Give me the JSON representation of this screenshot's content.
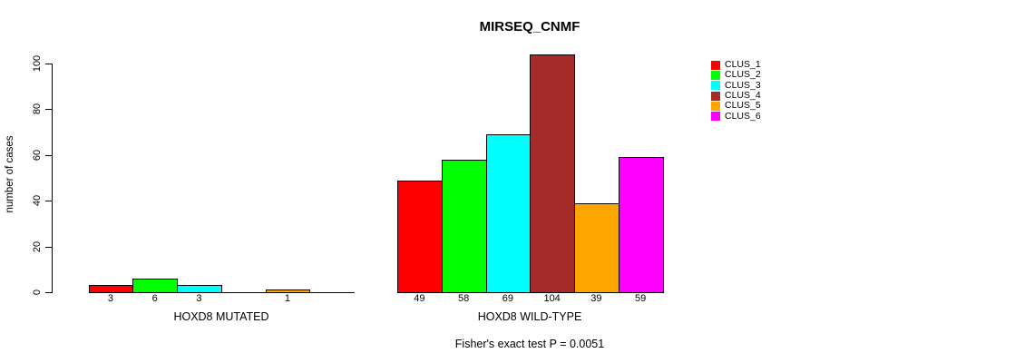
{
  "chart_data": {
    "type": "bar",
    "title": "MIRSEQ_CNMF",
    "ylabel": "number of cases",
    "xlabel": "",
    "ylim": [
      0,
      104
    ],
    "yticks": [
      0,
      20,
      40,
      60,
      80,
      100
    ],
    "grid": false,
    "legend_position": "right",
    "axis_color": "#000000",
    "bar_border_color": "#000000",
    "background_color": "#ffffff",
    "clusters": [
      {
        "name": "CLUS_1",
        "color": "#FF0000"
      },
      {
        "name": "CLUS_2",
        "color": "#00FF00"
      },
      {
        "name": "CLUS_3",
        "color": "#00FFFF"
      },
      {
        "name": "CLUS_4",
        "color": "#A52A2A"
      },
      {
        "name": "CLUS_5",
        "color": "#FFA500"
      },
      {
        "name": "CLUS_6",
        "color": "#FF00FF"
      }
    ],
    "groups": [
      {
        "label": "HOXD8 MUTATED",
        "values": [
          3,
          6,
          3,
          0,
          1,
          0
        ]
      },
      {
        "label": "HOXD8 WILD-TYPE",
        "values": [
          49,
          58,
          69,
          104,
          39,
          59
        ]
      }
    ],
    "footnote": "Fisher's exact test P = 0.0051"
  }
}
